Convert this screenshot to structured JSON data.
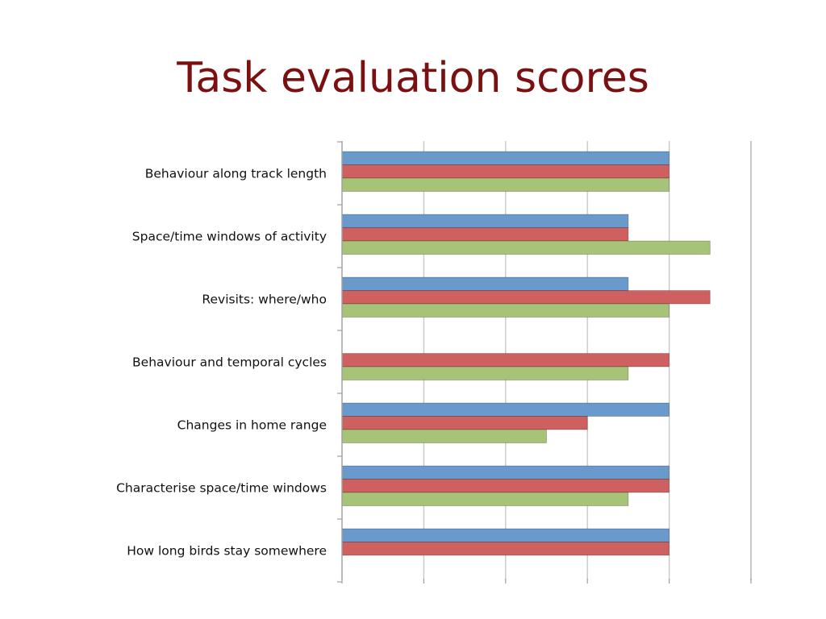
{
  "title": "Task evaluation scores",
  "colors": {
    "title": "#7a1010"
  },
  "chart_data": {
    "type": "bar",
    "orientation": "horizontal",
    "categories": [
      "Behaviour along track length",
      "Space/time windows of activity",
      "Revisits: where/who",
      "Behaviour and temporal cycles",
      "Changes in home range",
      "Characterise space/time windows",
      "How long birds stay somewhere"
    ],
    "series": [
      {
        "color": "#6a99cb",
        "values": [
          4,
          3.5,
          3.5,
          0,
          4,
          4,
          4
        ]
      },
      {
        "color": "#cf6060",
        "values": [
          4,
          3.5,
          4.5,
          4,
          3,
          4,
          4
        ]
      },
      {
        "color": "#a6c378",
        "values": [
          4,
          4.5,
          4,
          3.5,
          2.5,
          3.5,
          0
        ]
      }
    ],
    "xlim": [
      0,
      5
    ],
    "grid": true,
    "legend": "none",
    "tick_labels_shown": false
  }
}
